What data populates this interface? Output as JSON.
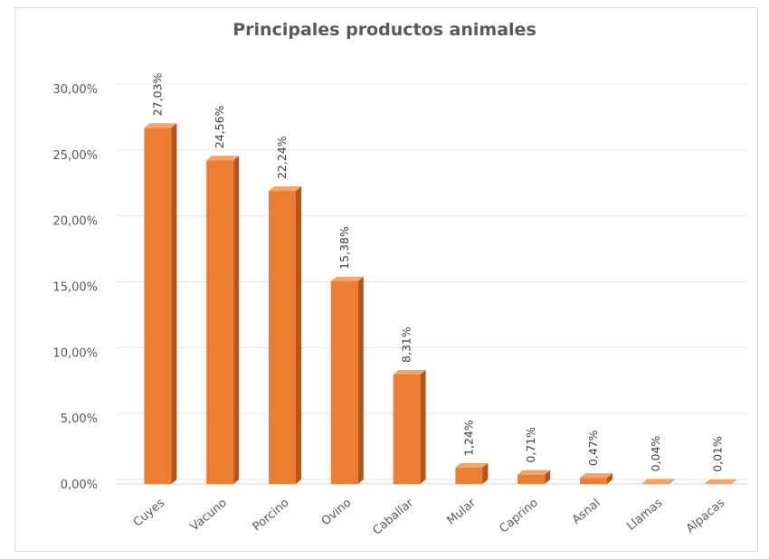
{
  "chart_data": {
    "type": "bar",
    "title": "Principales productos animales",
    "categories": [
      "Cuyes",
      "Vacuno",
      "Porcino",
      "Ovino",
      "Caballar",
      "Mular",
      "Caprino",
      "Asnal",
      "Llamas",
      "Alpacas"
    ],
    "values": [
      27.03,
      24.56,
      22.24,
      15.38,
      8.31,
      1.24,
      0.71,
      0.47,
      0.04,
      0.01
    ],
    "value_labels": [
      "27,03%",
      "24,56%",
      "22,24%",
      "15,38%",
      "8,31%",
      "1,24%",
      "0,71%",
      "0,47%",
      "0,04%",
      "0,01%"
    ],
    "yticks": [
      0,
      5,
      10,
      15,
      20,
      25,
      30
    ],
    "ytick_labels": [
      "0,00%",
      "5,00%",
      "10,00%",
      "15,00%",
      "20,00%",
      "25,00%",
      "30,00%"
    ],
    "ylim": [
      0,
      30
    ],
    "xlabel": "",
    "ylabel": "",
    "grid": true,
    "legend": "none",
    "bar_color": "#ED7D31",
    "bar_side_color": "#B5541A",
    "bar_top_color": "#F4A36B"
  }
}
